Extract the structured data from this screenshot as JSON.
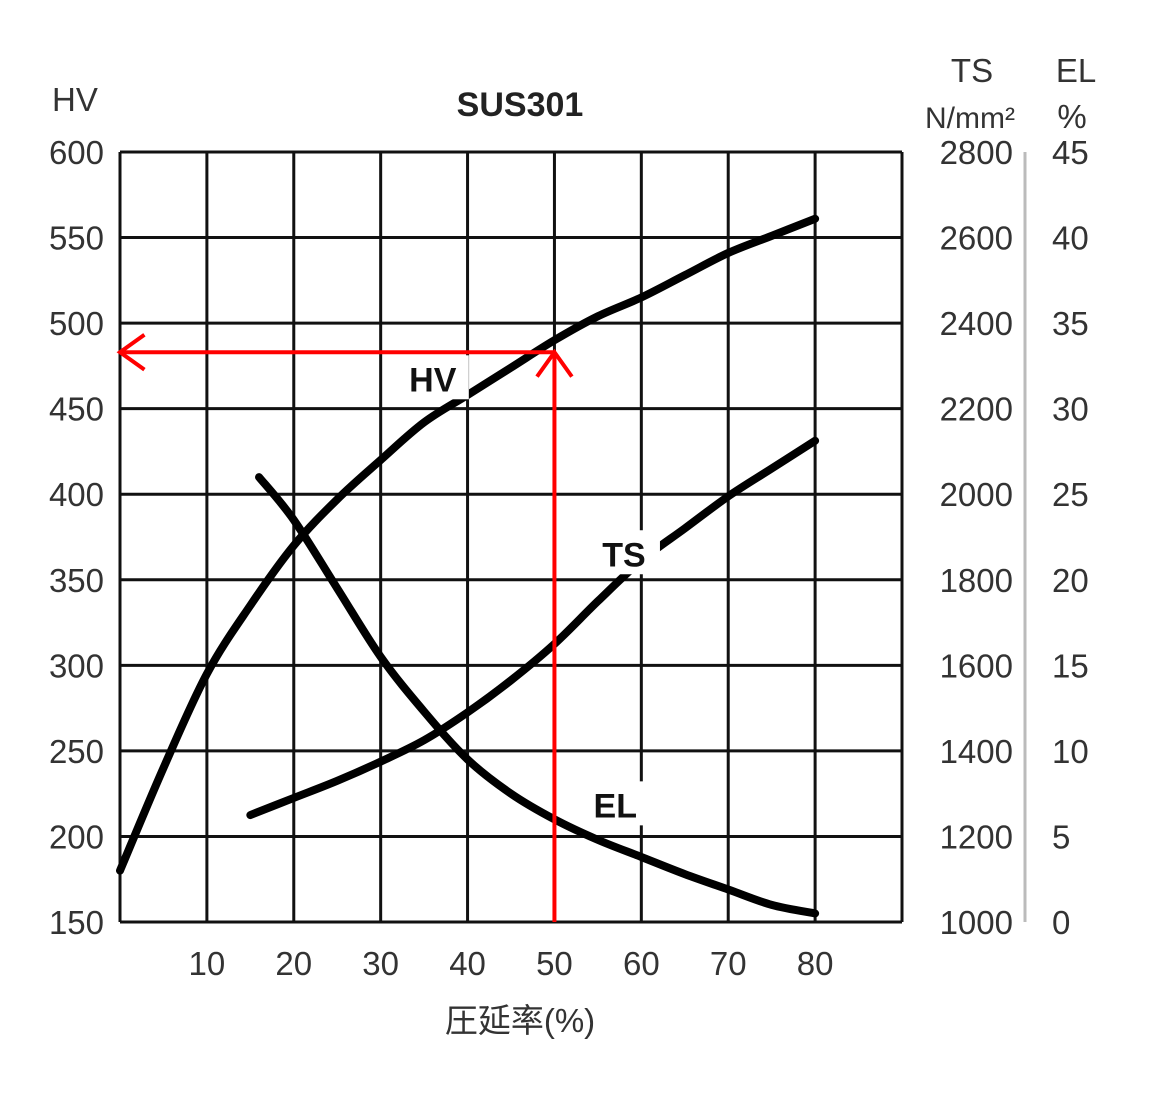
{
  "chart_data": {
    "type": "line",
    "title": "SUS301",
    "xlabel": "圧延率(%)",
    "xlim": [
      0,
      90
    ],
    "x_ticks": [
      10,
      20,
      30,
      40,
      50,
      60,
      70,
      80
    ],
    "grid": true,
    "axes": {
      "left": {
        "label": "HV",
        "ylim": [
          150,
          600
        ],
        "ticks": [
          150,
          200,
          250,
          300,
          350,
          400,
          450,
          500,
          550,
          600
        ]
      },
      "right_ts": {
        "label": "TS",
        "unit": "N/mm²",
        "ylim": [
          1000,
          2800
        ],
        "ticks": [
          1000,
          1200,
          1400,
          1600,
          1800,
          2000,
          2200,
          2400,
          2600,
          2800
        ]
      },
      "right_el": {
        "label": "EL",
        "unit": "%",
        "ylim": [
          0,
          45
        ],
        "ticks": [
          0,
          5,
          10,
          15,
          20,
          25,
          30,
          35,
          40,
          45
        ]
      }
    },
    "series": [
      {
        "name": "HV",
        "axis": "left",
        "color": "#000000",
        "x": [
          0,
          5,
          10,
          15,
          20,
          25,
          30,
          35,
          40,
          45,
          50,
          55,
          60,
          65,
          70,
          75,
          80
        ],
        "y": [
          180,
          240,
          295,
          335,
          370,
          397,
          420,
          442,
          458,
          474,
          490,
          504,
          515,
          528,
          541,
          551,
          561
        ]
      },
      {
        "name": "TS",
        "axis": "right_ts",
        "color": "#000000",
        "x": [
          15,
          20,
          25,
          30,
          35,
          40,
          45,
          50,
          55,
          60,
          65,
          70,
          75,
          80
        ],
        "y": [
          1250,
          1290,
          1330,
          1375,
          1425,
          1490,
          1565,
          1650,
          1750,
          1845,
          1920,
          1995,
          2060,
          2125
        ]
      },
      {
        "name": "EL",
        "axis": "right_el",
        "color": "#000000",
        "x": [
          16,
          20,
          25,
          30,
          35,
          40,
          45,
          50,
          55,
          60,
          65,
          70,
          75,
          80
        ],
        "y": [
          26,
          23.5,
          19.5,
          15.5,
          12.3,
          9.5,
          7.5,
          6,
          4.8,
          3.8,
          2.8,
          1.9,
          1,
          0.5
        ]
      }
    ],
    "annotations": [
      {
        "type": "arrow",
        "color": "#ff0000",
        "from": [
          50,
          150
        ],
        "to": [
          50,
          483
        ],
        "axis": "left"
      },
      {
        "type": "arrow",
        "color": "#ff0000",
        "from": [
          50,
          483
        ],
        "to": [
          0,
          483
        ],
        "axis": "left"
      }
    ]
  }
}
